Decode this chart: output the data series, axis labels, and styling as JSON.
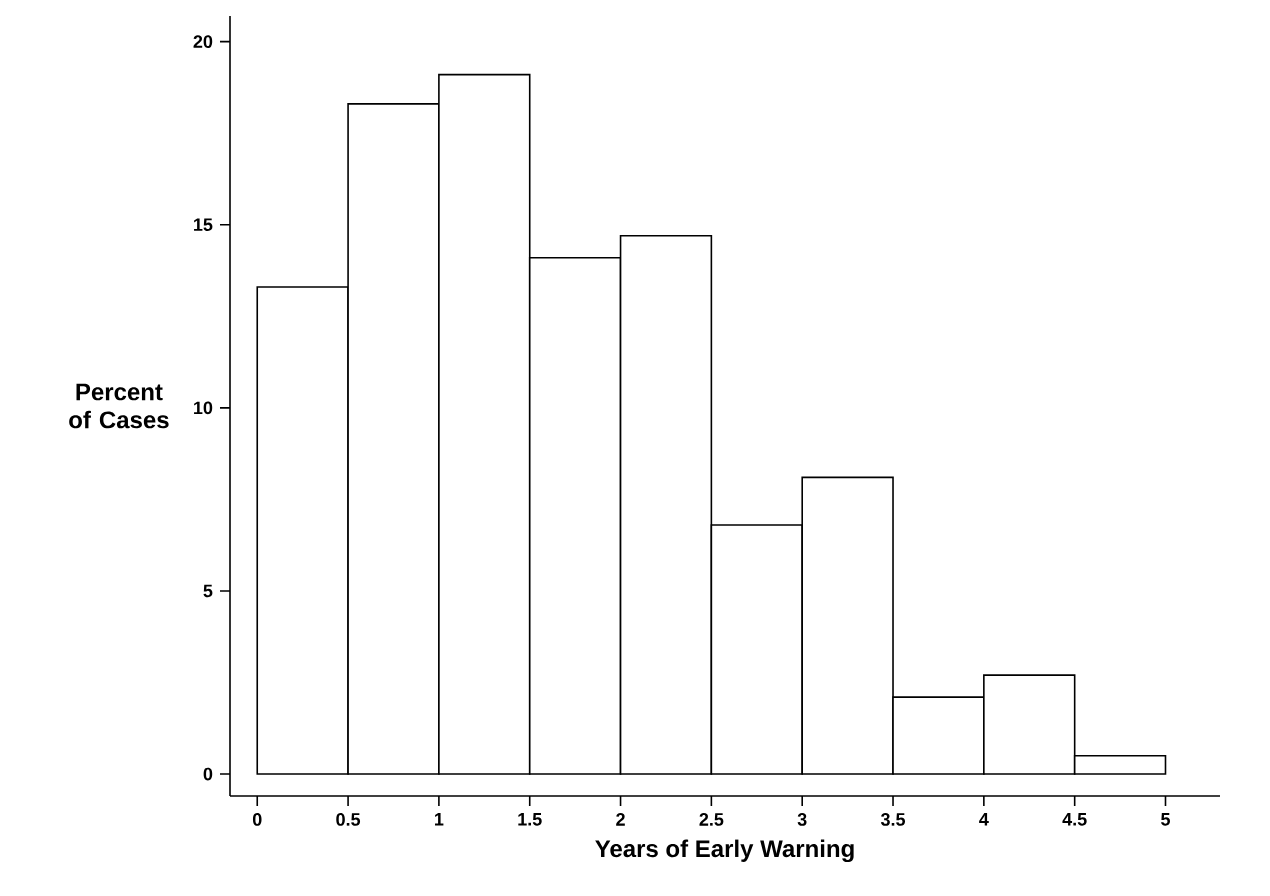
{
  "chart_data": {
    "type": "histogram",
    "xlabel": "Years of Early Warning",
    "ylabel": "Percent of Cases",
    "bins": [
      0,
      0.5,
      1,
      1.5,
      2,
      2.5,
      3,
      3.5,
      4,
      4.5,
      5
    ],
    "values": [
      13.3,
      18.3,
      19.1,
      14.1,
      14.7,
      6.8,
      8.1,
      2.1,
      2.7,
      0.5
    ],
    "color": "#000000",
    "xlim": [
      -0.15,
      5.3
    ],
    "ylim": [
      -0.6,
      20.7
    ],
    "xticks": [
      0,
      0.5,
      1,
      1.5,
      2,
      2.5,
      3,
      3.5,
      4,
      4.5,
      5
    ],
    "yticks": [
      0,
      5,
      10,
      15,
      20
    ]
  }
}
